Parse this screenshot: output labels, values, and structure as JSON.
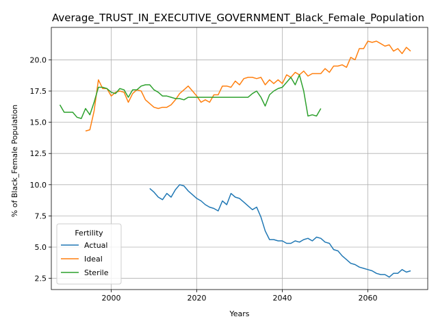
{
  "chart_data": {
    "type": "line",
    "title": "Average_TRUST_IN_EXECUTIVE_GOVERNMENT_Black_Female_Population",
    "xlabel": "Years",
    "ylabel": "% of Black_Female Population",
    "xlim": [
      1986,
      2074
    ],
    "ylim": [
      1.6,
      22.6
    ],
    "xticks": [
      2000,
      2020,
      2040,
      2060
    ],
    "yticks": [
      2.5,
      5.0,
      7.5,
      10.0,
      12.5,
      15.0,
      17.5,
      20.0
    ],
    "ytick_labels": [
      "2.5",
      "5.0",
      "7.5",
      "10.0",
      "12.5",
      "15.0",
      "17.5",
      "20.0"
    ],
    "grid": true,
    "legend": {
      "title": "Fertility",
      "location": "lower-left"
    },
    "series": [
      {
        "name": "Actual",
        "color": "#1f77b4",
        "x": [
          2009,
          2010,
          2011,
          2012,
          2013,
          2014,
          2015,
          2016,
          2017,
          2018,
          2019,
          2020,
          2021,
          2022,
          2023,
          2024,
          2025,
          2026,
          2027,
          2028,
          2029,
          2030,
          2031,
          2032,
          2033,
          2034,
          2035,
          2036,
          2037,
          2038,
          2039,
          2040,
          2041,
          2042,
          2043,
          2044,
          2045,
          2046,
          2047,
          2048,
          2049,
          2050,
          2051,
          2052,
          2053,
          2054,
          2055,
          2056,
          2057,
          2058,
          2059,
          2060,
          2061,
          2062,
          2063,
          2064,
          2065,
          2066,
          2067,
          2068,
          2069,
          2070
        ],
        "y": [
          9.7,
          9.4,
          9.0,
          8.8,
          9.3,
          9.0,
          9.6,
          10.0,
          9.9,
          9.5,
          9.2,
          8.9,
          8.7,
          8.4,
          8.2,
          8.1,
          7.9,
          8.7,
          8.4,
          9.3,
          9.0,
          8.9,
          8.6,
          8.3,
          8.0,
          8.2,
          7.4,
          6.3,
          5.6,
          5.6,
          5.5,
          5.5,
          5.3,
          5.3,
          5.5,
          5.4,
          5.6,
          5.7,
          5.5,
          5.8,
          5.7,
          5.4,
          5.3,
          4.8,
          4.7,
          4.3,
          4.0,
          3.7,
          3.6,
          3.4,
          3.3,
          3.2,
          3.1,
          2.9,
          2.8,
          2.8,
          2.6,
          2.9,
          2.9,
          3.2,
          3.0,
          3.1
        ]
      },
      {
        "name": "Ideal",
        "color": "#ff7f0e",
        "x": [
          1994,
          1995,
          1996,
          1997,
          1998,
          1999,
          2000,
          2001,
          2002,
          2003,
          2004,
          2005,
          2006,
          2007,
          2008,
          2009,
          2010,
          2011,
          2012,
          2013,
          2014,
          2015,
          2016,
          2017,
          2018,
          2019,
          2020,
          2021,
          2022,
          2023,
          2024,
          2025,
          2026,
          2027,
          2028,
          2029,
          2030,
          2031,
          2032,
          2033,
          2034,
          2035,
          2036,
          2037,
          2038,
          2039,
          2040,
          2041,
          2042,
          2043,
          2044,
          2045,
          2046,
          2047,
          2048,
          2049,
          2050,
          2051,
          2052,
          2053,
          2054,
          2055,
          2056,
          2057,
          2058,
          2059,
          2060,
          2061,
          2062,
          2063,
          2064,
          2065,
          2066,
          2067,
          2068,
          2069,
          2070
        ],
        "y": [
          14.3,
          14.4,
          15.9,
          18.4,
          17.7,
          17.7,
          17.1,
          17.4,
          17.5,
          17.4,
          16.6,
          17.3,
          17.6,
          17.5,
          16.8,
          16.5,
          16.2,
          16.1,
          16.2,
          16.2,
          16.4,
          16.8,
          17.3,
          17.6,
          17.9,
          17.5,
          17.1,
          16.6,
          16.8,
          16.6,
          17.2,
          17.2,
          17.9,
          17.9,
          17.8,
          18.3,
          18.0,
          18.5,
          18.6,
          18.6,
          18.5,
          18.6,
          18.0,
          18.4,
          18.1,
          18.4,
          18.1,
          18.8,
          18.6,
          19.0,
          18.8,
          19.1,
          18.7,
          18.9,
          18.9,
          18.9,
          19.3,
          19.0,
          19.5,
          19.5,
          19.6,
          19.4,
          20.2,
          20.0,
          20.9,
          20.9,
          21.5,
          21.4,
          21.5,
          21.3,
          21.1,
          21.2,
          20.7,
          20.9,
          20.5,
          21.0,
          20.7
        ]
      },
      {
        "name": "Sterile",
        "color": "#2ca02c",
        "x": [
          1988,
          1989,
          1990,
          1991,
          1992,
          1993,
          1994,
          1995,
          1996,
          1997,
          1998,
          1999,
          2000,
          2001,
          2002,
          2003,
          2004,
          2005,
          2006,
          2007,
          2008,
          2009,
          2010,
          2011,
          2012,
          2013,
          2014,
          2015,
          2016,
          2017,
          2018,
          2019,
          2020,
          2021,
          2022,
          2023,
          2024,
          2025,
          2026,
          2027,
          2028,
          2029,
          2030,
          2031,
          2032,
          2033,
          2034,
          2035,
          2036,
          2037,
          2038,
          2039,
          2040,
          2041,
          2042,
          2043,
          2044,
          2045,
          2046,
          2047,
          2048,
          2049
        ],
        "y": [
          16.4,
          15.8,
          15.8,
          15.8,
          15.4,
          15.3,
          16.1,
          15.6,
          16.6,
          17.8,
          17.8,
          17.7,
          17.4,
          17.3,
          17.7,
          17.6,
          17.0,
          17.6,
          17.6,
          17.9,
          18.0,
          18.0,
          17.6,
          17.4,
          17.1,
          17.1,
          17.0,
          16.9,
          16.9,
          16.8,
          17.0,
          17.0,
          17.0,
          17.0,
          17.0,
          17.0,
          17.0,
          17.0,
          17.0,
          17.0,
          17.0,
          17.0,
          17.0,
          17.0,
          17.0,
          17.3,
          17.5,
          17.0,
          16.3,
          17.2,
          17.5,
          17.7,
          17.8,
          18.2,
          18.6,
          18.0,
          18.8,
          17.5,
          15.5,
          15.6,
          15.5,
          16.1
        ]
      }
    ]
  }
}
